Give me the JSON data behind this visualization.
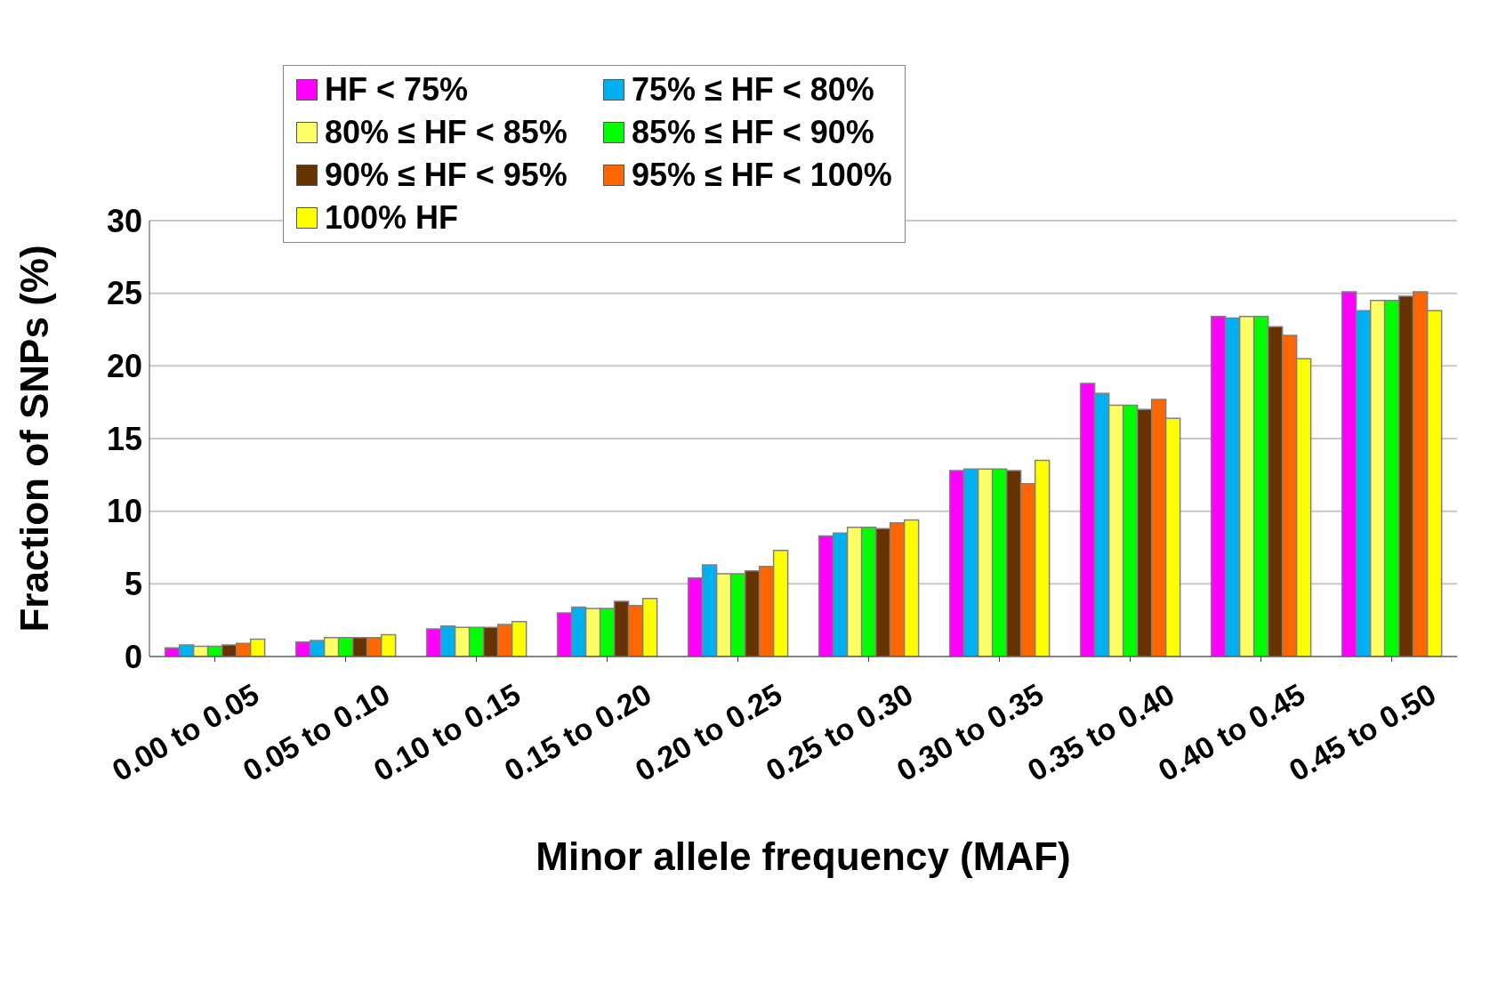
{
  "chart_data": {
    "type": "bar",
    "xlabel": "Minor allele frequency (MAF)",
    "ylabel": "Fraction of SNPs (%)",
    "categories": [
      "0.00 to 0.05",
      "0.05 to 0.10",
      "0.10 to 0.15",
      "0.15 to 0.20",
      "0.20 to 0.25",
      "0.25 to 0.30",
      "0.30 to 0.35",
      "0.35 to 0.40",
      "0.40 to 0.45",
      "0.45 to 0.50"
    ],
    "series": [
      {
        "name": "HF < 75%",
        "color": "#ff00ff",
        "values": [
          0.6,
          1.0,
          1.9,
          3.0,
          5.4,
          8.3,
          12.8,
          18.8,
          23.4,
          25.1
        ]
      },
      {
        "name": "75% ≤ HF < 80%",
        "color": "#00b0f0",
        "values": [
          0.8,
          1.1,
          2.1,
          3.4,
          6.3,
          8.5,
          12.9,
          18.1,
          23.3,
          23.8
        ]
      },
      {
        "name": "80% ≤ HF < 85%",
        "color": "#ffff66",
        "values": [
          0.7,
          1.3,
          2.0,
          3.3,
          5.7,
          8.9,
          12.9,
          17.3,
          23.4,
          24.5
        ]
      },
      {
        "name": "85% ≤ HF < 90%",
        "color": "#00ff00",
        "values": [
          0.7,
          1.3,
          2.0,
          3.3,
          5.7,
          8.9,
          12.9,
          17.3,
          23.4,
          24.5
        ]
      },
      {
        "name": "90% ≤ HF < 95%",
        "color": "#663300",
        "values": [
          0.8,
          1.3,
          2.0,
          3.8,
          5.9,
          8.8,
          12.8,
          17.0,
          22.7,
          24.8
        ]
      },
      {
        "name": "95% ≤ HF < 100%",
        "color": "#ff6600",
        "values": [
          0.9,
          1.3,
          2.2,
          3.5,
          6.2,
          9.2,
          11.9,
          17.7,
          22.1,
          25.1
        ]
      },
      {
        "name": "100% HF",
        "color": "#ffff00",
        "values": [
          1.2,
          1.5,
          2.4,
          4.0,
          7.3,
          9.4,
          13.5,
          16.4,
          20.5,
          23.8
        ]
      }
    ],
    "ylim": [
      0,
      30
    ],
    "yticks": [
      0,
      5,
      10,
      15,
      20,
      25,
      30
    ],
    "grid": "y",
    "legend": "top left"
  }
}
